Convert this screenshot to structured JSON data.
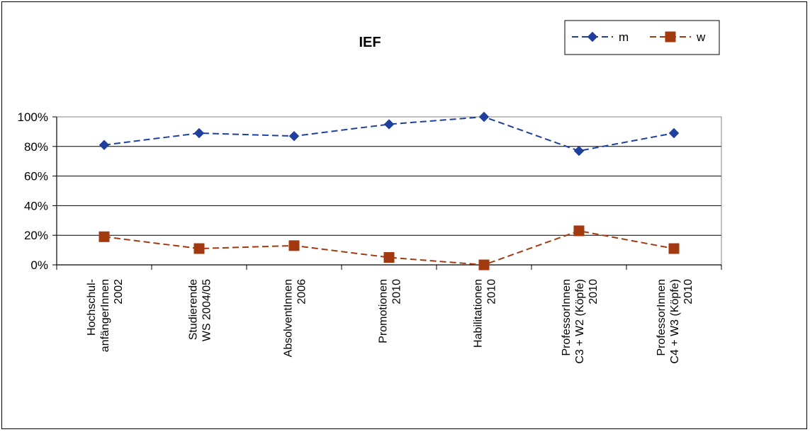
{
  "chart_data": {
    "type": "line",
    "title": "IEF",
    "categories": [
      [
        "Hochschul-",
        "anfängerInnen",
        "2002"
      ],
      [
        "Studierende",
        "WS 2004/05"
      ],
      [
        "AbsolventInnen",
        "2006"
      ],
      [
        "Promotionen",
        "2010"
      ],
      [
        "Habilitationen",
        "2010"
      ],
      [
        "ProfessorInnen",
        "C3 + W2 (Köpfe)",
        "2010"
      ],
      [
        "ProfessorInnen",
        "C4 + W3 (Köpfe)",
        "2010"
      ]
    ],
    "series": [
      {
        "name": "m",
        "values": [
          0.81,
          0.89,
          0.87,
          0.95,
          1.0,
          0.77,
          0.89
        ],
        "color": "#1F3F9E",
        "marker": "diamond"
      },
      {
        "name": "w",
        "values": [
          0.19,
          0.11,
          0.13,
          0.05,
          0.0,
          0.23,
          0.11
        ],
        "color": "#A33A0F",
        "marker": "square"
      }
    ],
    "ylim": [
      0,
      1
    ],
    "yticks": [
      {
        "value": 0,
        "label": "0%"
      },
      {
        "value": 0.2,
        "label": "20%"
      },
      {
        "value": 0.4,
        "label": "40%"
      },
      {
        "value": 0.6,
        "label": "60%"
      },
      {
        "value": 0.8,
        "label": "80%"
      },
      {
        "value": 1.0,
        "label": "100%"
      }
    ],
    "grid": true,
    "legend": "top-right",
    "line_style": "dashed"
  }
}
